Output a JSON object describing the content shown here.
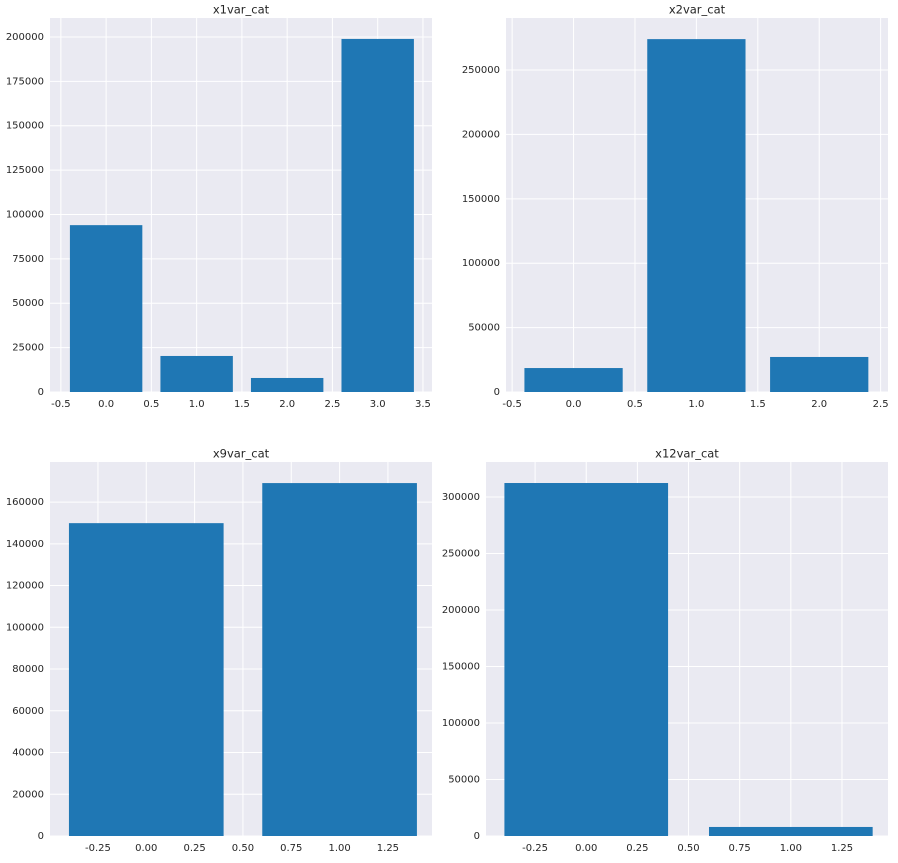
{
  "chart_data": [
    {
      "type": "bar",
      "title": "x1var_cat",
      "x": [
        0,
        1,
        2,
        3
      ],
      "values": [
        94000,
        20300,
        7900,
        198900
      ],
      "color": "#1f77b4",
      "xlim": [
        -0.62,
        3.6
      ],
      "xticks": [
        -0.5,
        {
          "value": 0,
          "label": "0.0"
        },
        0.5,
        {
          "value": 1,
          "label": "1.0"
        },
        1.5,
        {
          "value": 2,
          "label": "2.0"
        },
        2.5,
        {
          "value": 3,
          "label": "3.0"
        },
        3.5
      ],
      "ylim": [
        0,
        210700
      ],
      "yticks": [
        0,
        25000,
        50000,
        75000,
        100000,
        125000,
        150000,
        175000,
        200000
      ],
      "grid": true
    },
    {
      "type": "bar",
      "title": "x2var_cat",
      "x": [
        0,
        1,
        2
      ],
      "values": [
        18600,
        274000,
        27200
      ],
      "color": "#1f77b4",
      "xlim": [
        -0.55,
        2.56
      ],
      "xticks": [
        -0.5,
        {
          "value": 0,
          "label": "0.0"
        },
        0.5,
        {
          "value": 1,
          "label": "1.0"
        },
        1.5,
        {
          "value": 2,
          "label": "2.0"
        },
        2.5
      ],
      "ylim": [
        0,
        290400
      ],
      "yticks": [
        0,
        50000,
        100000,
        150000,
        200000,
        250000
      ],
      "grid": true
    },
    {
      "type": "bar",
      "title": "x9var_cat",
      "x": [
        0,
        1
      ],
      "values": [
        149900,
        169100
      ],
      "color": "#1f77b4",
      "xlim": [
        -0.498,
        1.478
      ],
      "xticks": [
        -0.25,
        {
          "value": 0,
          "label": "0.00"
        },
        0.25,
        {
          "value": 0.5,
          "label": "0.50"
        },
        0.75,
        {
          "value": 1,
          "label": "1.00"
        },
        1.25
      ],
      "ylim": [
        0,
        179200
      ],
      "yticks": [
        0,
        20000,
        40000,
        60000,
        80000,
        100000,
        120000,
        140000,
        160000
      ],
      "grid": true
    },
    {
      "type": "bar",
      "title": "x12var_cat",
      "x": [
        0,
        1
      ],
      "values": [
        312400,
        8000
      ],
      "color": "#1f77b4",
      "xlim": [
        -0.49,
        1.475
      ],
      "xticks": [
        -0.25,
        {
          "value": 0,
          "label": "0.00"
        },
        0.25,
        {
          "value": 0.5,
          "label": "0.50"
        },
        0.75,
        {
          "value": 1,
          "label": "1.00"
        },
        1.25
      ],
      "ylim": [
        0,
        331000
      ],
      "yticks": [
        0,
        50000,
        100000,
        150000,
        200000,
        250000,
        300000
      ],
      "grid": true
    }
  ]
}
